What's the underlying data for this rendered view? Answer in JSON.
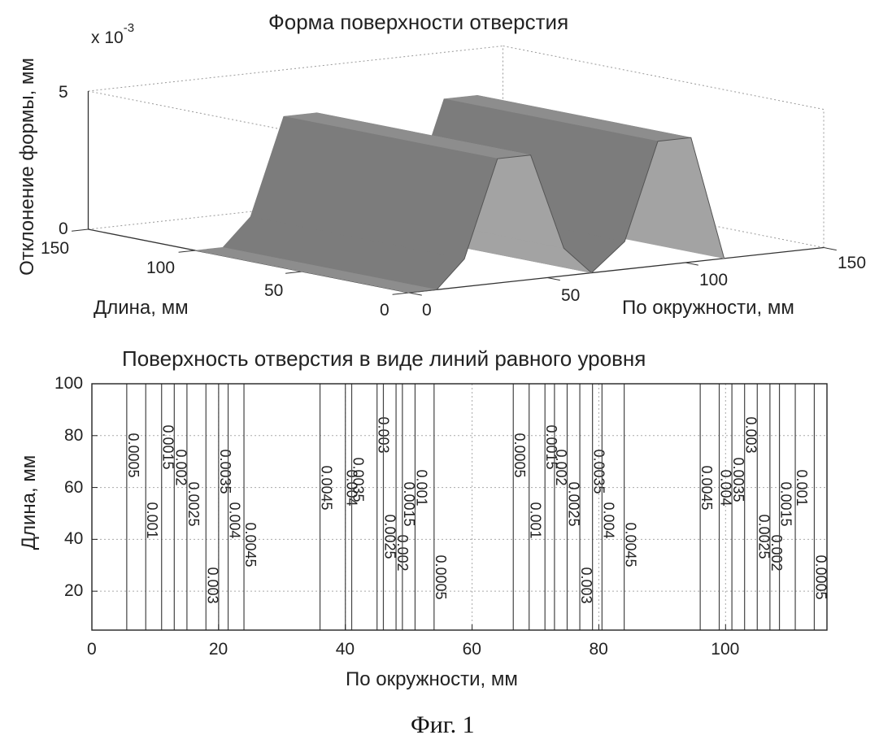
{
  "figure_caption": "Фиг. 1",
  "chart_data": [
    {
      "type": "surface",
      "title": "Форма поверхности отверстия",
      "xlabel": "По окружности, мм",
      "ylabel": "Длина, мм",
      "zlabel": "Отклонение формы, мм",
      "z_multiplier_label": "x 10",
      "z_multiplier_exp": "-3",
      "x_ticks": [
        "0",
        "50",
        "100",
        "150"
      ],
      "y_ticks": [
        "0",
        "50",
        "100",
        "150"
      ],
      "z_ticks": [
        "0",
        "5"
      ],
      "xlim": [
        0,
        150
      ],
      "ylim": [
        0,
        150
      ],
      "zlim": [
        0,
        0.005
      ],
      "grid": true,
      "profile": {
        "x": [
          0,
          10,
          20,
          32,
          44,
          56,
          66,
          78,
          90,
          102,
          114
        ],
        "z": [
          0,
          0,
          0.001,
          0.0045,
          0.0045,
          0.001,
          0,
          0.001,
          0.0045,
          0.0045,
          0
        ]
      }
    },
    {
      "type": "contour",
      "title": "Поверхность отверстия в виде линий равного уровня",
      "xlabel": "По окружности, мм",
      "ylabel": "Длина, мм",
      "x_ticks": [
        "0",
        "20",
        "40",
        "60",
        "80",
        "100"
      ],
      "y_ticks": [
        "20",
        "40",
        "60",
        "80",
        "100"
      ],
      "xlim": [
        0,
        116
      ],
      "ylim": [
        5,
        100
      ],
      "grid": true,
      "contour_lines": [
        {
          "x": 5.5,
          "level": "0.0005"
        },
        {
          "x": 8.5,
          "level": "0.001"
        },
        {
          "x": 11,
          "level": "0.0015"
        },
        {
          "x": 13,
          "level": "0.002"
        },
        {
          "x": 15,
          "level": "0.0025"
        },
        {
          "x": 18,
          "level": "0.003"
        },
        {
          "x": 20,
          "level": "0.0035"
        },
        {
          "x": 21.5,
          "level": "0.004"
        },
        {
          "x": 24,
          "level": "0.0045"
        },
        {
          "x": 36,
          "level": "0.0045"
        },
        {
          "x": 40,
          "level": "0.004"
        },
        {
          "x": 41,
          "level": "0.0035"
        },
        {
          "x": 45,
          "level": "0.003"
        },
        {
          "x": 46,
          "level": "0.0025"
        },
        {
          "x": 48,
          "level": "0.002"
        },
        {
          "x": 49,
          "level": "0.0015"
        },
        {
          "x": 51,
          "level": "0.001"
        },
        {
          "x": 54,
          "level": "0.0005"
        },
        {
          "x": 66.5,
          "level": "0.0005"
        },
        {
          "x": 69,
          "level": "0.001"
        },
        {
          "x": 71.5,
          "level": "0.0015"
        },
        {
          "x": 73,
          "level": "0.002"
        },
        {
          "x": 75,
          "level": "0.0025"
        },
        {
          "x": 77,
          "level": "0.003"
        },
        {
          "x": 79,
          "level": "0.0035"
        },
        {
          "x": 80.5,
          "level": "0.004"
        },
        {
          "x": 84,
          "level": "0.0045"
        },
        {
          "x": 96,
          "level": "0.0045"
        },
        {
          "x": 99,
          "level": "0.004"
        },
        {
          "x": 101,
          "level": "0.0035"
        },
        {
          "x": 103,
          "level": "0.003"
        },
        {
          "x": 105,
          "level": "0.0025"
        },
        {
          "x": 107,
          "level": "0.002"
        },
        {
          "x": 108.5,
          "level": "0.0015"
        },
        {
          "x": 111,
          "level": "0.001"
        },
        {
          "x": 114,
          "level": "0.0005"
        }
      ]
    }
  ]
}
